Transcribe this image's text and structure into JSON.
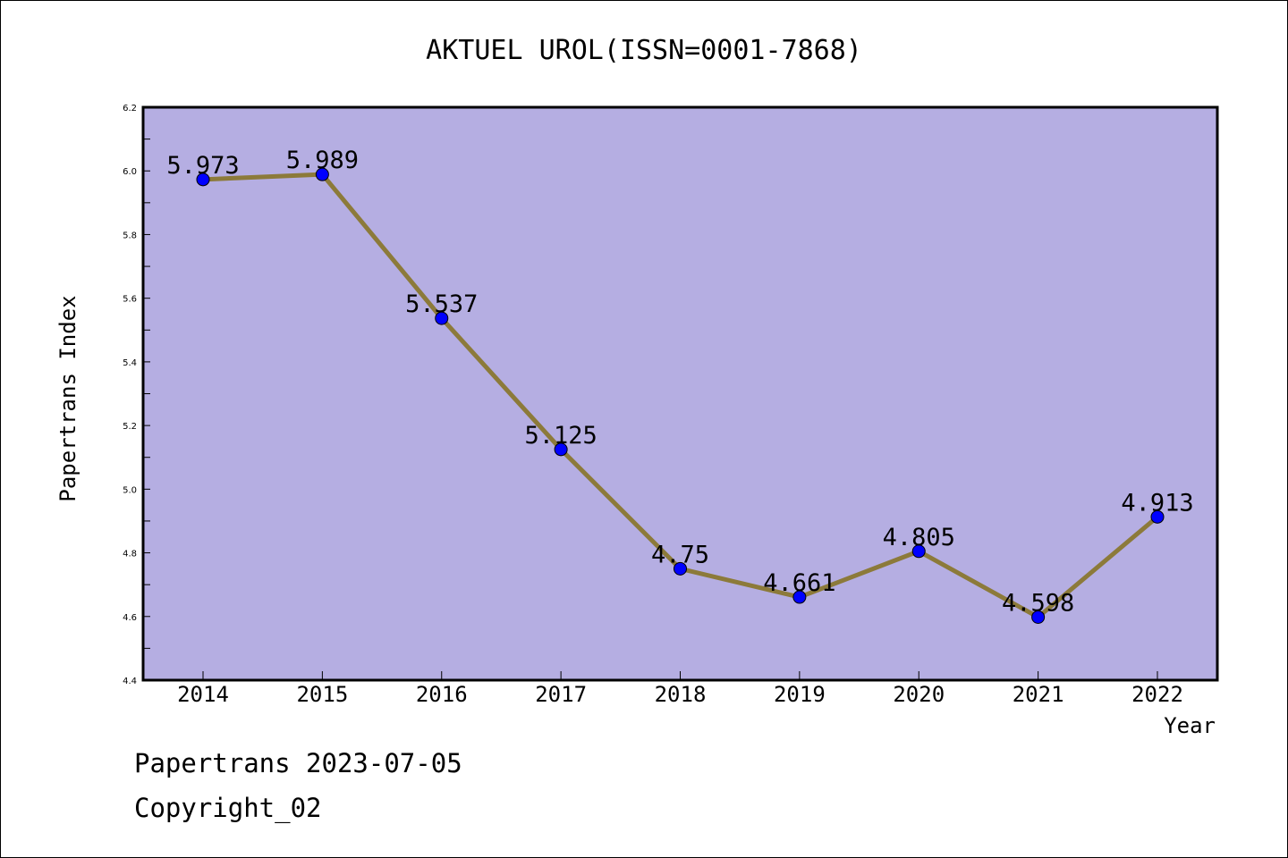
{
  "chart_data": {
    "type": "line",
    "title": "AKTUEL UROL(ISSN=0001-7868)",
    "xlabel": "Year",
    "ylabel": "Papertrans Index",
    "x": [
      "2014",
      "2015",
      "2016",
      "2017",
      "2018",
      "2019",
      "2020",
      "2021",
      "2022"
    ],
    "values": [
      5.973,
      5.989,
      5.537,
      5.125,
      4.75,
      4.661,
      4.805,
      4.598,
      4.913
    ],
    "data_labels": [
      "5.973",
      "5.989",
      "5.537",
      "5.125",
      "4.75",
      "4.661",
      "4.805",
      "4.598",
      "4.913"
    ],
    "ylim": [
      4.4,
      6.2
    ],
    "yticks": [
      "4.4",
      "4.6",
      "4.8",
      "5.0",
      "5.2",
      "5.4",
      "5.6",
      "5.8",
      "6.0",
      "6.2"
    ],
    "grid": false,
    "colors": {
      "plot_background": "#b5aee2",
      "line": "#8c7a3a",
      "marker": "#0000ff"
    }
  },
  "footer": {
    "line1": "Papertrans 2023-07-05",
    "line2": "Copyright_02"
  }
}
